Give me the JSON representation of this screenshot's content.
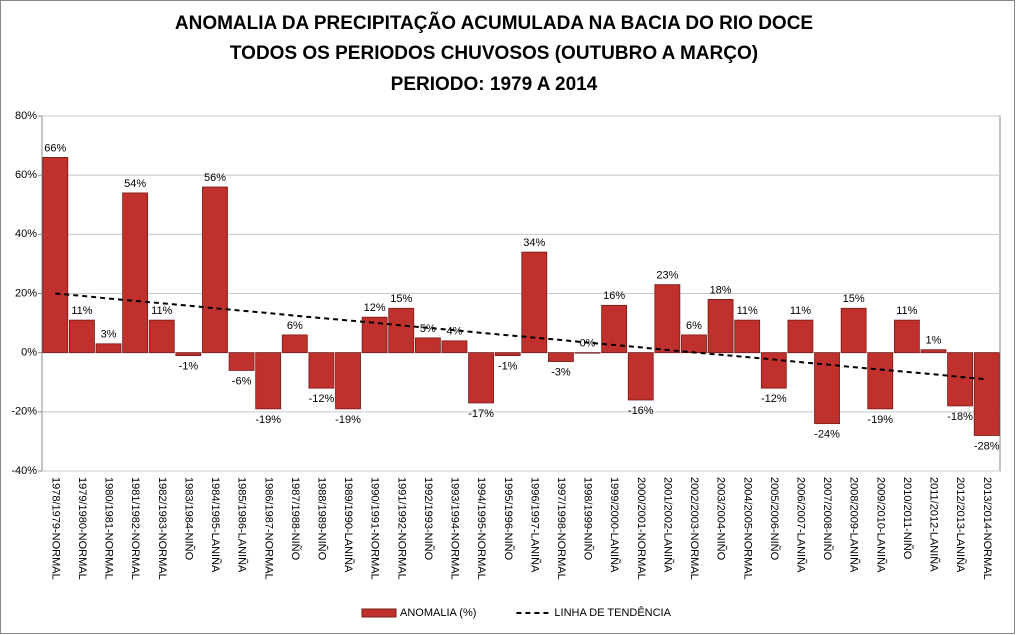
{
  "chart_data": {
    "type": "bar",
    "title": [
      "ANOMALIA DA PRECIPITAÇÃO ACUMULADA  NA BACIA DO RIO DOCE",
      "TODOS OS PERIODOS CHUVOSOS (OUTUBRO A MARÇO)",
      "PERIODO: 1979 A 2014"
    ],
    "categories": [
      "1978/1979-NORMAL",
      "1979/1980-NORMAL",
      "1980/1981-NORMAL",
      "1981/1982-NORMAL",
      "1982/1983-NORMAL",
      "1983/1984-NIÑO",
      "1984/1985-LANIÑA",
      "1985/1986-LANIÑA",
      "1986/1987-NORMAL",
      "1987/1988-NIÑO",
      "1988/1989-NIÑO",
      "1989/1990-LANIÑA",
      "1990/1991-NORMAL",
      "1991/1992-NORMAL",
      "1992/1993-NIÑO",
      "1993/1994-NORMAL",
      "1994/1995-NORMAL",
      "1995/1996-NIÑO",
      "1996/1997-LANIÑA",
      "1997/1998-NORMAL",
      "1998/1999-NIÑO",
      "1999/2000-LANIÑA",
      "2000/2001-NORMAL",
      "2001/2002-LANIÑA",
      "2002/2003-NORMAL",
      "2003/2004-NIÑO",
      "2004/2005-NORMAL",
      "2005/2006-NIÑO",
      "2006/2007-LANIÑA",
      "2007/2008-NIÑO",
      "2008/2009-LANIÑA",
      "2009/2010-LANIÑA",
      "2010/2011-NIÑO",
      "2011/2012-LANIÑA",
      "2012/2013-LANIÑA",
      "2013/2014-NORMAL"
    ],
    "series": [
      {
        "name": "ANOMALIA (%)",
        "type": "bar",
        "color": "#c0302c",
        "values": [
          66,
          11,
          3,
          54,
          11,
          -1,
          56,
          -6,
          -19,
          6,
          -12,
          -19,
          12,
          15,
          5,
          4,
          -17,
          -1,
          34,
          -3,
          0,
          16,
          -16,
          23,
          6,
          18,
          11,
          -12,
          11,
          -24,
          15,
          -19,
          11,
          1,
          -18,
          -28
        ],
        "value_labels": [
          "66%",
          "11%",
          "3%",
          "54%",
          "11%",
          "-1%",
          "56%",
          "-6%",
          "-19%",
          "6%",
          "-12%",
          "-19%",
          "12%",
          "15%",
          "5%",
          "4%",
          "-17%",
          "-1%",
          "34%",
          "-3%",
          "0%",
          "16%",
          "-16%",
          "23%",
          "6%",
          "18%",
          "11%",
          "-12%",
          "11%",
          "-24%",
          "15%",
          "-19%",
          "11%",
          "1%",
          "-18%",
          "-28%"
        ]
      },
      {
        "name": "LINHA DE TENDÊNCIA",
        "type": "line",
        "color": "#000000",
        "dash": true,
        "values": [
          20,
          19.2,
          18.3,
          17.5,
          16.7,
          15.9,
          15.0,
          14.2,
          13.4,
          12.5,
          11.7,
          10.9,
          10.1,
          9.2,
          8.4,
          7.6,
          6.7,
          5.9,
          5.1,
          4.3,
          3.4,
          2.6,
          1.8,
          0.9,
          0.1,
          -0.7,
          -1.5,
          -2.3,
          -3.2,
          -4.0,
          -4.9,
          -5.7,
          -6.5,
          -7.3,
          -8.2,
          -9.0
        ]
      }
    ],
    "ylim": [
      -40,
      80
    ],
    "yticks": [
      {
        "value": -40,
        "label": "-40%"
      },
      {
        "value": -20,
        "label": "-20%"
      },
      {
        "value": 0,
        "label": "0%"
      },
      {
        "value": 20,
        "label": "20%"
      },
      {
        "value": 40,
        "label": "40%"
      },
      {
        "value": 60,
        "label": "60%"
      },
      {
        "value": 80,
        "label": "80%"
      }
    ],
    "grid": true,
    "legend": "bottom"
  }
}
